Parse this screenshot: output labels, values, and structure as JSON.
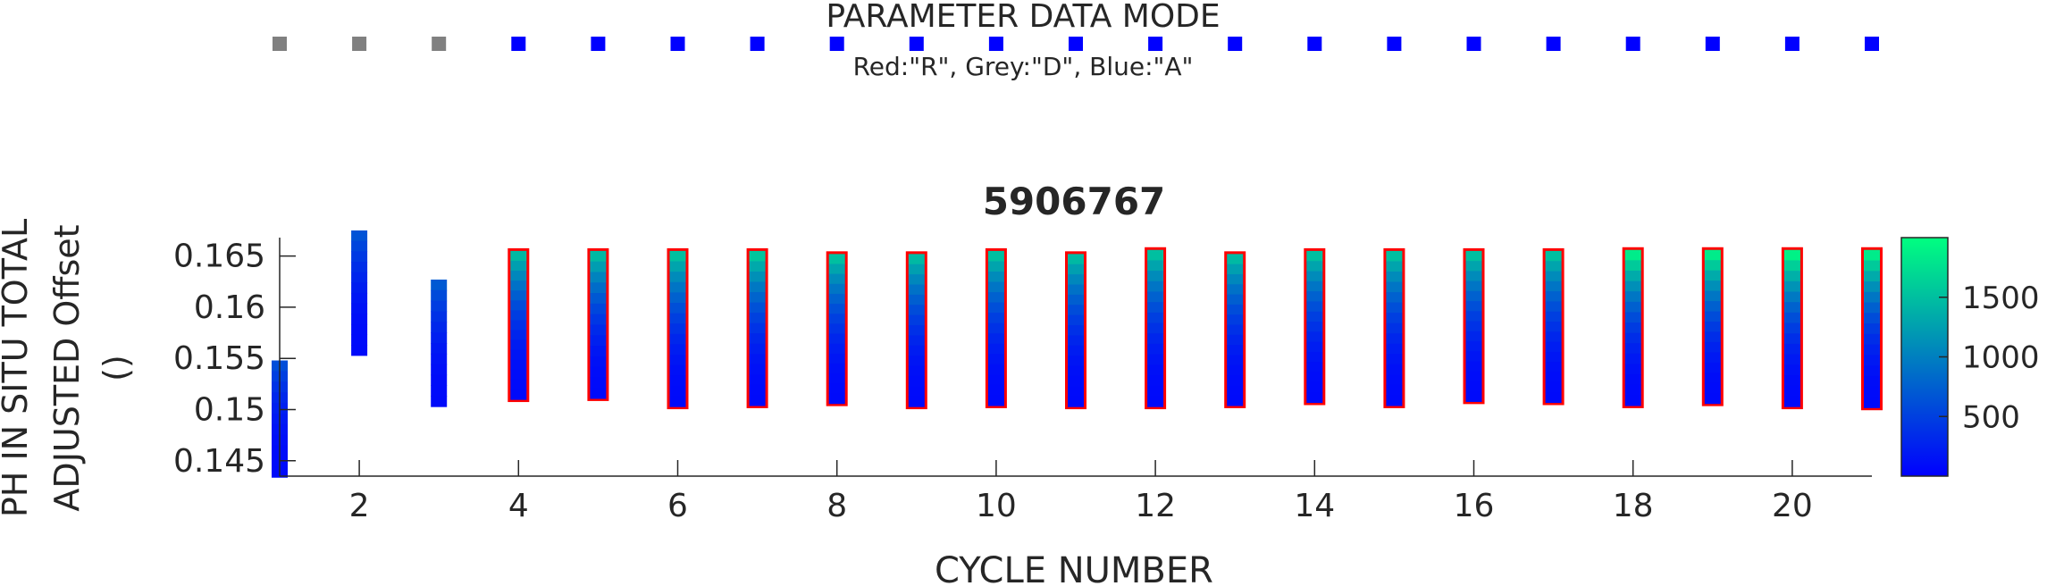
{
  "mode_strip": {
    "title": "PARAMETER DATA MODE",
    "legend": "Red:\"R\", Grey:\"D\", Blue:\"A\"",
    "modes": [
      "D",
      "D",
      "D",
      "A",
      "A",
      "A",
      "A",
      "A",
      "A",
      "A",
      "A",
      "A",
      "A",
      "A",
      "A",
      "A",
      "A",
      "A",
      "A",
      "A",
      "A"
    ],
    "colors": {
      "R": "#ff0000",
      "D": "#808080",
      "A": "#0000ff"
    }
  },
  "chart_data": {
    "type": "scatter",
    "title": "5906767",
    "xlabel": "CYCLE NUMBER",
    "ylabel_lines": [
      "PH IN SITU TOTAL",
      "ADJUSTED Offset",
      "()"
    ],
    "xlim": [
      1,
      21
    ],
    "ylim": [
      0.1435,
      0.1668
    ],
    "xticks": [
      2,
      4,
      6,
      8,
      10,
      12,
      14,
      16,
      18,
      20
    ],
    "yticks": [
      0.145,
      0.15,
      0.155,
      0.16,
      0.165
    ],
    "ytick_labels": [
      "0.145",
      "0.15",
      "0.155",
      "0.16",
      "0.165"
    ],
    "colorbar": {
      "ticks": [
        500,
        1000,
        1500
      ],
      "range": [
        0,
        2000
      ],
      "colors": [
        "#0000ff",
        "#00ff80"
      ]
    },
    "series": [
      {
        "cycle": 1,
        "ymin": 0.1434,
        "ymax": 0.1548,
        "zmax": 600,
        "flag": false
      },
      {
        "cycle": 2,
        "ymin": 0.1553,
        "ymax": 0.1675,
        "zmax": 650,
        "flag": false
      },
      {
        "cycle": 3,
        "ymin": 0.1503,
        "ymax": 0.1627,
        "zmax": 700,
        "flag": false
      },
      {
        "cycle": 4,
        "ymin": 0.151,
        "ymax": 0.1655,
        "zmax": 1450,
        "flag": true
      },
      {
        "cycle": 5,
        "ymin": 0.1511,
        "ymax": 0.1655,
        "zmax": 1450,
        "flag": true
      },
      {
        "cycle": 6,
        "ymin": 0.1503,
        "ymax": 0.1655,
        "zmax": 1500,
        "flag": true
      },
      {
        "cycle": 7,
        "ymin": 0.1504,
        "ymax": 0.1655,
        "zmax": 1550,
        "flag": true
      },
      {
        "cycle": 8,
        "ymin": 0.1506,
        "ymax": 0.1652,
        "zmax": 1500,
        "flag": true
      },
      {
        "cycle": 9,
        "ymin": 0.1503,
        "ymax": 0.1652,
        "zmax": 1450,
        "flag": true
      },
      {
        "cycle": 10,
        "ymin": 0.1504,
        "ymax": 0.1655,
        "zmax": 1500,
        "flag": true
      },
      {
        "cycle": 11,
        "ymin": 0.1503,
        "ymax": 0.1652,
        "zmax": 1450,
        "flag": true
      },
      {
        "cycle": 12,
        "ymin": 0.1503,
        "ymax": 0.1656,
        "zmax": 1500,
        "flag": true
      },
      {
        "cycle": 13,
        "ymin": 0.1504,
        "ymax": 0.1652,
        "zmax": 1450,
        "flag": true
      },
      {
        "cycle": 14,
        "ymin": 0.1507,
        "ymax": 0.1655,
        "zmax": 1500,
        "flag": true
      },
      {
        "cycle": 15,
        "ymin": 0.1504,
        "ymax": 0.1655,
        "zmax": 1500,
        "flag": true
      },
      {
        "cycle": 16,
        "ymin": 0.1508,
        "ymax": 0.1655,
        "zmax": 1500,
        "flag": true
      },
      {
        "cycle": 17,
        "ymin": 0.1507,
        "ymax": 0.1655,
        "zmax": 1500,
        "flag": true
      },
      {
        "cycle": 18,
        "ymin": 0.1504,
        "ymax": 0.1656,
        "zmax": 1850,
        "flag": true
      },
      {
        "cycle": 19,
        "ymin": 0.1506,
        "ymax": 0.1656,
        "zmax": 1850,
        "flag": true
      },
      {
        "cycle": 20,
        "ymin": 0.1503,
        "ymax": 0.1656,
        "zmax": 1900,
        "flag": true
      },
      {
        "cycle": 21,
        "ymin": 0.1502,
        "ymax": 0.1656,
        "zmax": 1850,
        "flag": true
      }
    ]
  }
}
